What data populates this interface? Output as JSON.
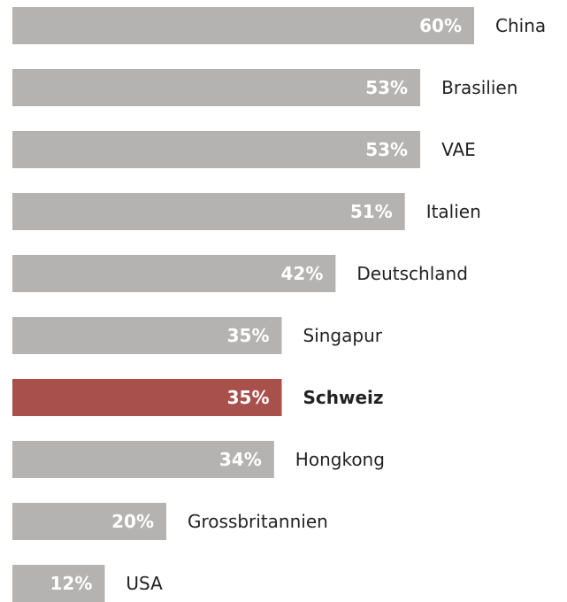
{
  "chart_data": {
    "type": "hbar",
    "categories": [
      "China",
      "Brasilien",
      "VAE",
      "Italien",
      "Deutschland",
      "Singapur",
      "Schweiz",
      "Hongkong",
      "Grossbritannien",
      "USA"
    ],
    "values": [
      60,
      53,
      53,
      51,
      42,
      35,
      35,
      34,
      20,
      12
    ],
    "value_labels": [
      "60%",
      "53%",
      "53%",
      "51%",
      "42%",
      "35%",
      "35%",
      "34%",
      "20%",
      "12%"
    ],
    "color": "#b5b3b1",
    "highlight": {
      "index": 6,
      "color": "#a8504b"
    }
  }
}
